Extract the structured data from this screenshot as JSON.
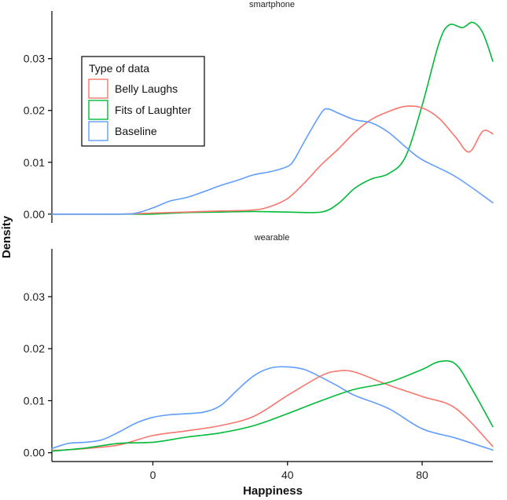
{
  "chart_data": {
    "type": "line",
    "subtype": "density",
    "xlabel": "Happiness",
    "ylabel": "Density",
    "xlim": [
      -30,
      101
    ],
    "x_ticks": [
      0,
      40,
      80
    ],
    "y_ticks": [
      0.0,
      0.01,
      0.02,
      0.03
    ],
    "y_tick_labels": [
      "0.00",
      "0.01",
      "0.02",
      "0.03"
    ],
    "legend": {
      "title": "Type of data",
      "placement": "top-left (inside top panel)",
      "entries": [
        "Belly Laughs",
        "Fits of Laughter",
        "Baseline"
      ]
    },
    "colors": {
      "Belly Laughs": "#f8766d",
      "Fits of Laughter": "#00ba38",
      "Baseline": "#619cff"
    },
    "panels": [
      {
        "title": "smartphone",
        "ylim": [
          -0.0017,
          0.0392
        ],
        "series": [
          {
            "name": "Fits of Laughter",
            "x": [
              -30,
              -10,
              0,
              10,
              20,
              30,
              40,
              50,
              55,
              60,
              65,
              70,
              75,
              80,
              85,
              88,
              92,
              95,
              98,
              101
            ],
            "y": [
              0,
              0,
              0,
              0.0003,
              0.0004,
              0.0005,
              0.0004,
              0.0004,
              0.002,
              0.005,
              0.0068,
              0.0078,
              0.011,
              0.021,
              0.033,
              0.0365,
              0.036,
              0.037,
              0.035,
              0.0295
            ]
          },
          {
            "name": "Belly Laughs",
            "x": [
              -30,
              -10,
              0,
              10,
              20,
              30,
              35,
              40,
              45,
              50,
              55,
              60,
              65,
              70,
              75,
              80,
              85,
              90,
              94,
              98,
              101
            ],
            "y": [
              0,
              0,
              0.0002,
              0.0004,
              0.0006,
              0.0008,
              0.0015,
              0.003,
              0.006,
              0.0095,
              0.0125,
              0.0158,
              0.0183,
              0.0198,
              0.0208,
              0.0205,
              0.0185,
              0.0148,
              0.012,
              0.016,
              0.0155
            ]
          },
          {
            "name": "Baseline",
            "x": [
              -30,
              -10,
              -5,
              0,
              5,
              10,
              15,
              20,
              25,
              30,
              35,
              40,
              42,
              45,
              50,
              52,
              55,
              60,
              65,
              70,
              75,
              80,
              90,
              101
            ],
            "y": [
              0,
              0,
              0.0002,
              0.0012,
              0.0025,
              0.0032,
              0.0043,
              0.0055,
              0.0065,
              0.0076,
              0.0082,
              0.0092,
              0.0105,
              0.014,
              0.0195,
              0.0203,
              0.0195,
              0.0182,
              0.0176,
              0.0158,
              0.013,
              0.0105,
              0.0072,
              0.0022
            ]
          }
        ]
      },
      {
        "title": "wearable",
        "ylim": [
          -0.0017,
          0.0392
        ],
        "series": [
          {
            "name": "Baseline",
            "x": [
              -30,
              -25,
              -20,
              -15,
              -10,
              -5,
              0,
              5,
              10,
              15,
              20,
              25,
              30,
              35,
              40,
              45,
              50,
              55,
              60,
              70,
              80,
              90,
              101
            ],
            "y": [
              0.0008,
              0.0018,
              0.002,
              0.0025,
              0.004,
              0.0057,
              0.0068,
              0.0073,
              0.0075,
              0.0078,
              0.009,
              0.012,
              0.0148,
              0.0163,
              0.0165,
              0.016,
              0.0145,
              0.0128,
              0.011,
              0.0085,
              0.0046,
              0.0028,
              0.0005
            ]
          },
          {
            "name": "Belly Laughs",
            "x": [
              -30,
              -20,
              -10,
              0,
              10,
              20,
              30,
              40,
              50,
              55,
              60,
              70,
              80,
              90,
              101
            ],
            "y": [
              0.0004,
              0.0008,
              0.0015,
              0.0033,
              0.0042,
              0.0052,
              0.007,
              0.011,
              0.0148,
              0.0157,
              0.0155,
              0.013,
              0.0108,
              0.0085,
              0.0012
            ]
          },
          {
            "name": "Fits of Laughter",
            "x": [
              -30,
              -20,
              -10,
              0,
              10,
              20,
              30,
              40,
              50,
              60,
              70,
              80,
              85,
              90,
              95,
              101
            ],
            "y": [
              0.0003,
              0.0009,
              0.0018,
              0.002,
              0.003,
              0.0038,
              0.0052,
              0.0075,
              0.01,
              0.0122,
              0.0135,
              0.016,
              0.0175,
              0.017,
              0.012,
              0.005
            ]
          }
        ]
      }
    ]
  }
}
